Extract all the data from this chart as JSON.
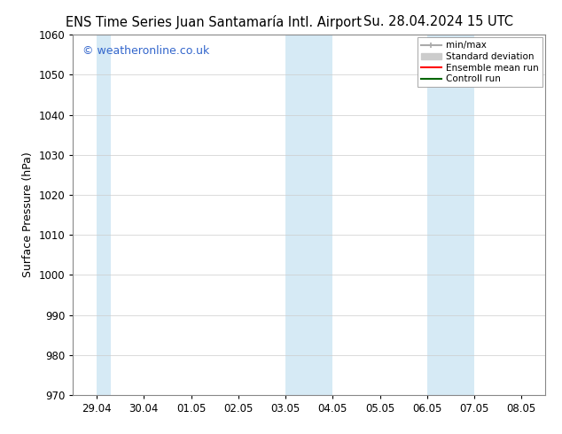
{
  "title_left": "ENS Time Series Juan Santamaría Intl. Airport",
  "title_right": "Su. 28.04.2024 15 UTC",
  "ylabel": "Surface Pressure (hPa)",
  "ylim": [
    970,
    1060
  ],
  "yticks": [
    970,
    980,
    990,
    1000,
    1010,
    1020,
    1030,
    1040,
    1050,
    1060
  ],
  "xtick_labels": [
    "29.04",
    "30.04",
    "01.05",
    "02.05",
    "03.05",
    "04.05",
    "05.05",
    "06.05",
    "07.05",
    "08.05"
  ],
  "watermark": "© weatheronline.co.uk",
  "watermark_color": "#3366cc",
  "background_color": "#ffffff",
  "plot_bg_color": "#ffffff",
  "shaded_color": "#d6eaf5",
  "shaded_alpha": 1.0,
  "shaded_bands": [
    {
      "xstart": 0.0,
      "xend": 0.3
    },
    {
      "xstart": 4.0,
      "xend": 4.5
    },
    {
      "xstart": 4.5,
      "xend": 5.0
    },
    {
      "xstart": 7.0,
      "xend": 7.5
    },
    {
      "xstart": 7.5,
      "xend": 8.0
    }
  ],
  "legend_entries": [
    {
      "label": "min/max",
      "color": "#aaaaaa",
      "lw": 1.5
    },
    {
      "label": "Standard deviation",
      "color": "#cccccc",
      "lw": 6
    },
    {
      "label": "Ensemble mean run",
      "color": "#ff0000",
      "lw": 1.5
    },
    {
      "label": "Controll run",
      "color": "#006600",
      "lw": 1.5
    }
  ],
  "title_fontsize": 10.5,
  "tick_fontsize": 8.5,
  "label_fontsize": 9,
  "watermark_fontsize": 9,
  "fig_width": 6.34,
  "fig_height": 4.9,
  "dpi": 100
}
